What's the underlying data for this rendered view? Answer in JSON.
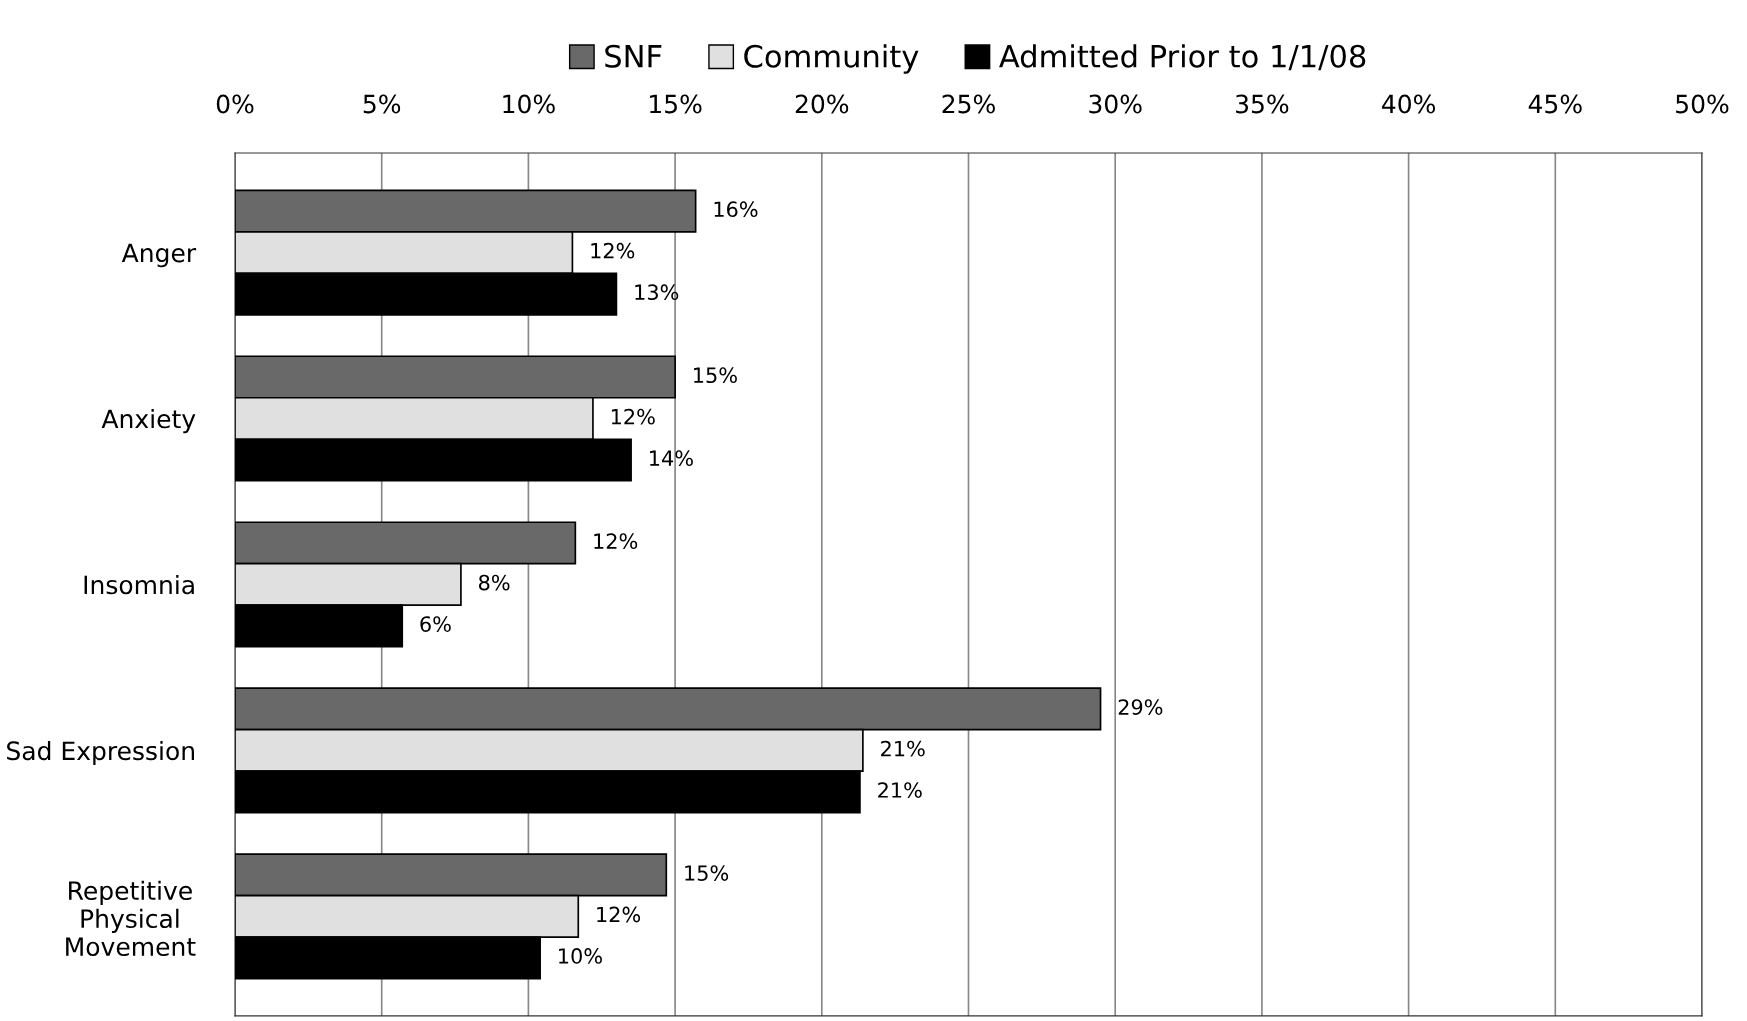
{
  "chart_data": {
    "type": "bar",
    "orientation": "horizontal",
    "categories": [
      "Anger",
      "Anxiety",
      "Insomnia",
      "Sad Expression",
      "Repetitive\nPhysical\nMovement"
    ],
    "series": [
      {
        "name": "SNF",
        "color": "#696969",
        "values": [
          15.7,
          15.0,
          11.6,
          29.5,
          14.7
        ],
        "value_labels": [
          "16%",
          "15%",
          "12%",
          "29%",
          "15%"
        ]
      },
      {
        "name": "Community",
        "color": "#e0e0e0",
        "values": [
          11.5,
          12.2,
          7.7,
          21.4,
          11.7
        ],
        "value_labels": [
          "12%",
          "12%",
          "8%",
          "21%",
          "12%"
        ]
      },
      {
        "name": "Admitted Prior to 1/1/08",
        "color": "#000000",
        "values": [
          13.0,
          13.5,
          5.7,
          21.3,
          10.4
        ],
        "value_labels": [
          "13%",
          "14%",
          "6%",
          "21%",
          "10%"
        ]
      }
    ],
    "xlim": [
      0,
      50
    ],
    "xticks": [
      {
        "value": 0,
        "label": "0%"
      },
      {
        "value": 5,
        "label": "5%"
      },
      {
        "value": 10,
        "label": "10%"
      },
      {
        "value": 15,
        "label": "15%"
      },
      {
        "value": 20,
        "label": "20%"
      },
      {
        "value": 25,
        "label": "25%"
      },
      {
        "value": 30,
        "label": "30%"
      },
      {
        "value": 35,
        "label": "35%"
      },
      {
        "value": 40,
        "label": "40%"
      },
      {
        "value": 45,
        "label": "45%"
      },
      {
        "value": 50,
        "label": "50%"
      }
    ],
    "grid": "x",
    "legend": "top"
  }
}
